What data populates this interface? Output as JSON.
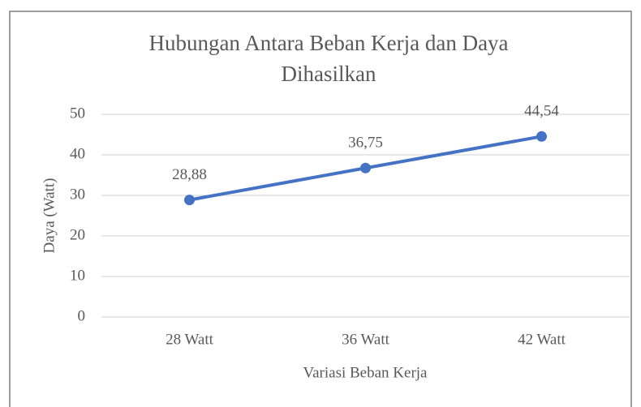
{
  "chart_data": {
    "type": "line",
    "title": "Hubungan Antara Beban Kerja dan Daya Dihasilkan",
    "x_label": "Variasi Beban Kerja",
    "y_label": "Daya (Watt)",
    "categories": [
      "28 Watt",
      "36 Watt",
      "42 Watt"
    ],
    "series": [
      {
        "name": "Daya",
        "color": "#4472c4",
        "values": [
          28.88,
          36.75,
          44.54
        ],
        "value_labels": [
          "28,88",
          "36,75",
          "44,54"
        ]
      }
    ],
    "ylim": [
      0,
      50
    ],
    "yticks": [
      0,
      10,
      20,
      30,
      40,
      50
    ],
    "grid": true
  }
}
